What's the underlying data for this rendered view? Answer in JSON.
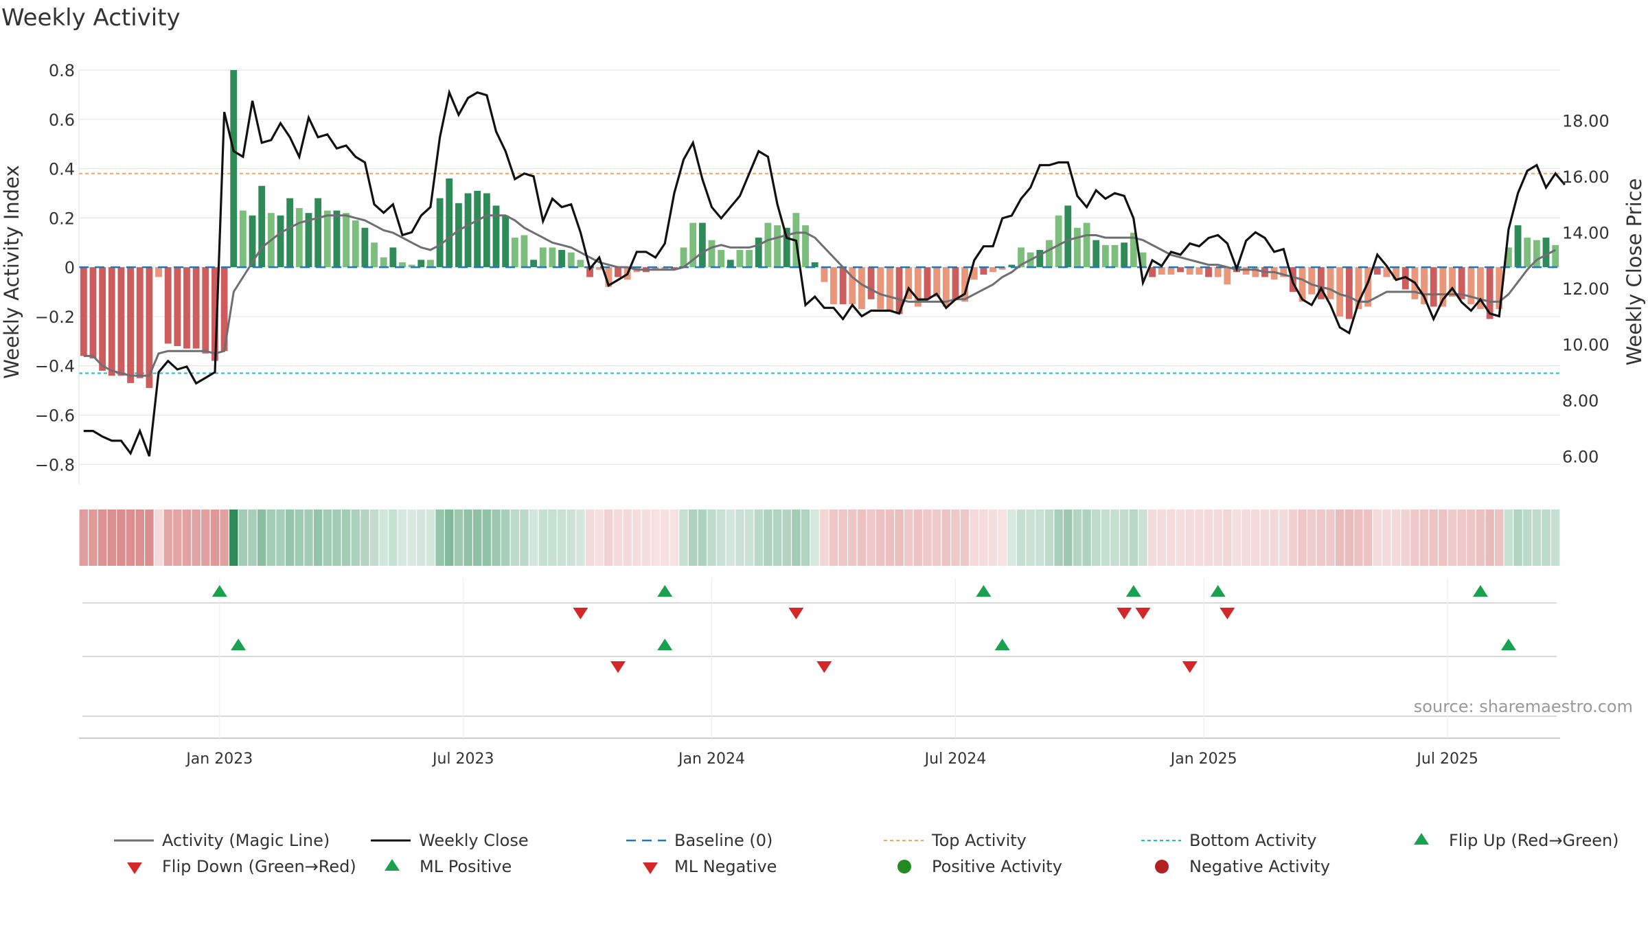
{
  "title": "Weekly Activity",
  "source": "source: sharemaestro.com",
  "colors": {
    "positive_strong": "#2e8b57",
    "positive_light": "#7cbf7c",
    "negative_strong": "#cd5c5c",
    "negative_light": "#e9967a",
    "magic_line": "#6e6e73",
    "close_line": "#111111",
    "baseline": "#1f77b4",
    "top_line": "#f4a460",
    "bottom_line": "#17becf",
    "up_marker": "#1aa150",
    "down_marker": "#d62728",
    "pos_dot": "#228b22",
    "neg_dot": "#b22222"
  },
  "chart_data": {
    "type": "bar",
    "title": "Weekly Activity",
    "ylabel": "Weekly Activity Index",
    "ylabel_right": "Weekly Close Price",
    "ylim": [
      -0.88,
      0.8
    ],
    "y2lim": [
      5.0,
      19.8
    ],
    "yticks": [
      "0.8",
      "0.6",
      "0.4",
      "0.2",
      "0",
      "−0.2",
      "−0.4",
      "−0.6",
      "−0.8"
    ],
    "ytick_values": [
      0.8,
      0.6,
      0.4,
      0.2,
      0,
      -0.2,
      -0.4,
      -0.6,
      -0.8
    ],
    "y2ticks": [
      "18.00",
      "16.00",
      "14.00",
      "12.00",
      "10.00",
      "8.00",
      "6.00"
    ],
    "y2tick_values": [
      18,
      16,
      14,
      12,
      10,
      8,
      6
    ],
    "xticks": [
      "Jan 2023",
      "Jul 2023",
      "Jan 2024",
      "Jul 2024",
      "Jan 2025",
      "Jul 2025"
    ],
    "xtick_weeks": [
      14.5,
      40.5,
      67,
      93,
      119.5,
      145.5
    ],
    "top_activity": 0.38,
    "bottom_activity": -0.43,
    "baseline": 0,
    "weeks": 158,
    "activity": [
      -0.36,
      -0.37,
      -0.42,
      -0.44,
      -0.44,
      -0.47,
      -0.45,
      -0.49,
      -0.04,
      -0.31,
      -0.32,
      -0.33,
      -0.33,
      -0.35,
      -0.38,
      -0.34,
      0.8,
      0.23,
      0.21,
      0.33,
      0.22,
      0.21,
      0.28,
      0.24,
      0.22,
      0.28,
      0.23,
      0.23,
      0.22,
      0.19,
      0.16,
      0.1,
      0.04,
      0.08,
      0.02,
      0.01,
      0.03,
      0.03,
      0.28,
      0.36,
      0.26,
      0.3,
      0.31,
      0.3,
      0.25,
      0.21,
      0.12,
      0.13,
      0.03,
      0.08,
      0.08,
      0.07,
      0.06,
      0.03,
      -0.04,
      -0.01,
      -0.08,
      -0.04,
      -0.05,
      -0.02,
      -0.02,
      -0.01,
      -0.01,
      -0.01,
      0.08,
      0.18,
      0.18,
      0.11,
      0.07,
      0.03,
      0.07,
      0.07,
      0.12,
      0.18,
      0.17,
      0.16,
      0.22,
      0.17,
      0.02,
      -0.06,
      -0.15,
      -0.15,
      -0.15,
      -0.17,
      -0.13,
      -0.17,
      -0.18,
      -0.19,
      -0.13,
      -0.16,
      -0.13,
      -0.12,
      -0.16,
      -0.13,
      -0.14,
      -0.05,
      -0.03,
      -0.02,
      -0.01,
      0.01,
      0.08,
      0.06,
      0.07,
      0.11,
      0.21,
      0.25,
      0.16,
      0.18,
      0.11,
      0.09,
      0.09,
      0.1,
      0.14,
      0.06,
      -0.04,
      -0.03,
      -0.03,
      -0.02,
      -0.03,
      -0.03,
      -0.04,
      -0.04,
      -0.07,
      -0.02,
      -0.03,
      -0.04,
      -0.04,
      -0.05,
      -0.04,
      -0.1,
      -0.14,
      -0.11,
      -0.13,
      -0.13,
      -0.2,
      -0.21,
      -0.17,
      -0.16,
      -0.03,
      -0.04,
      -0.05,
      -0.09,
      -0.13,
      -0.15,
      -0.16,
      -0.16,
      -0.12,
      -0.13,
      -0.15,
      -0.17,
      -0.21,
      -0.17,
      0.08,
      0.17,
      0.12,
      0.11,
      0.12,
      0.09
    ],
    "magic_line": [
      -0.36,
      -0.36,
      -0.4,
      -0.42,
      -0.43,
      -0.44,
      -0.44,
      -0.44,
      -0.35,
      -0.34,
      -0.34,
      -0.34,
      -0.34,
      -0.34,
      -0.35,
      -0.34,
      -0.1,
      -0.04,
      0.02,
      0.08,
      0.11,
      0.14,
      0.16,
      0.18,
      0.19,
      0.2,
      0.21,
      0.21,
      0.21,
      0.2,
      0.19,
      0.17,
      0.15,
      0.14,
      0.12,
      0.1,
      0.08,
      0.07,
      0.09,
      0.12,
      0.15,
      0.17,
      0.19,
      0.21,
      0.21,
      0.21,
      0.19,
      0.16,
      0.14,
      0.12,
      0.1,
      0.09,
      0.08,
      0.06,
      0.04,
      0.02,
      0.01,
      0.0,
      0.0,
      -0.01,
      -0.01,
      -0.01,
      -0.01,
      -0.01,
      0.0,
      0.03,
      0.06,
      0.08,
      0.09,
      0.08,
      0.08,
      0.08,
      0.09,
      0.11,
      0.12,
      0.13,
      0.14,
      0.14,
      0.12,
      0.08,
      0.04,
      0.0,
      -0.04,
      -0.07,
      -0.09,
      -0.11,
      -0.12,
      -0.13,
      -0.14,
      -0.14,
      -0.14,
      -0.14,
      -0.14,
      -0.13,
      -0.13,
      -0.11,
      -0.09,
      -0.07,
      -0.04,
      -0.02,
      0.01,
      0.03,
      0.05,
      0.07,
      0.09,
      0.11,
      0.12,
      0.13,
      0.13,
      0.12,
      0.12,
      0.12,
      0.12,
      0.11,
      0.09,
      0.07,
      0.05,
      0.04,
      0.03,
      0.02,
      0.01,
      0.01,
      0.0,
      -0.01,
      -0.01,
      -0.01,
      -0.02,
      -0.02,
      -0.03,
      -0.04,
      -0.05,
      -0.07,
      -0.08,
      -0.09,
      -0.11,
      -0.12,
      -0.14,
      -0.14,
      -0.12,
      -0.1,
      -0.1,
      -0.1,
      -0.1,
      -0.11,
      -0.11,
      -0.11,
      -0.11,
      -0.11,
      -0.12,
      -0.13,
      -0.14,
      -0.14,
      -0.11,
      -0.06,
      -0.01,
      0.03,
      0.05,
      0.07
    ],
    "weekly_close": [
      6.9,
      6.9,
      6.7,
      6.55,
      6.55,
      6.1,
      6.9,
      6.0,
      9.0,
      9.4,
      9.1,
      9.2,
      8.6,
      8.8,
      9.0,
      18.3,
      16.9,
      16.7,
      18.7,
      17.2,
      17.3,
      17.9,
      17.4,
      16.7,
      18.1,
      17.4,
      17.5,
      17.0,
      17.1,
      16.7,
      16.5,
      15.0,
      14.7,
      15.0,
      13.9,
      14.0,
      14.6,
      14.9,
      17.4,
      19.0,
      18.2,
      18.8,
      19.0,
      18.9,
      17.6,
      16.9,
      15.9,
      16.1,
      16.0,
      14.4,
      15.2,
      14.9,
      15.0,
      14.0,
      12.7,
      13.1,
      12.1,
      12.3,
      12.5,
      13.3,
      13.3,
      13.1,
      13.6,
      15.4,
      16.6,
      17.2,
      15.9,
      14.9,
      14.5,
      14.9,
      15.3,
      16.1,
      16.9,
      16.7,
      15.0,
      13.8,
      13.7,
      11.4,
      11.7,
      11.3,
      11.3,
      10.9,
      11.4,
      11.0,
      11.2,
      11.2,
      11.2,
      11.1,
      12.0,
      11.6,
      11.6,
      11.8,
      11.3,
      11.6,
      11.8,
      13.0,
      13.5,
      13.5,
      14.5,
      14.6,
      15.2,
      15.6,
      16.4,
      16.4,
      16.5,
      16.5,
      15.3,
      14.9,
      15.5,
      15.2,
      15.4,
      15.3,
      14.5,
      12.2,
      13.0,
      12.8,
      13.3,
      13.2,
      13.6,
      13.5,
      13.8,
      13.9,
      13.6,
      12.7,
      13.7,
      14.0,
      13.8,
      13.3,
      13.4,
      12.2,
      11.6,
      11.4,
      12.0,
      11.4,
      10.6,
      10.4,
      11.5,
      12.2,
      13.2,
      12.8,
      12.3,
      12.4,
      12.2,
      11.7,
      10.9,
      11.6,
      12.0,
      11.5,
      11.2,
      11.6,
      11.1,
      11.0,
      14.1,
      15.4,
      16.2,
      16.4,
      15.6,
      16.1,
      15.7
    ],
    "flip_up_weeks": [
      14.5,
      62,
      96,
      112,
      121,
      149
    ],
    "flip_down_weeks": [
      53,
      76,
      111,
      113,
      122
    ],
    "ml_positive_weeks": [
      16.5,
      62,
      98,
      152
    ],
    "ml_negative_weeks": [
      57,
      79,
      118
    ],
    "legend": [
      "Activity (Magic Line)",
      "Weekly Close",
      "Baseline (0)",
      "Top Activity",
      "Bottom Activity",
      "Flip Up (Red→Green)",
      "Flip Down (Green→Red)",
      "ML Positive",
      "ML Negative",
      "Positive Activity",
      "Negative Activity"
    ]
  }
}
